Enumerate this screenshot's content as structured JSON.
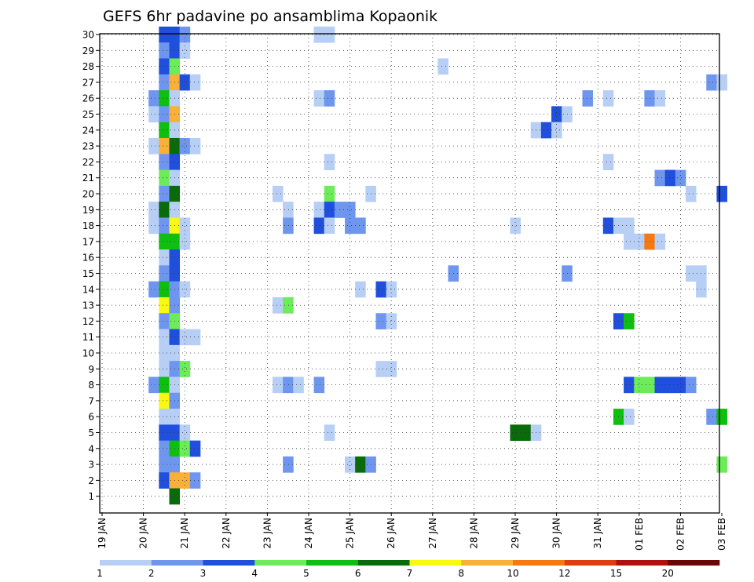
{
  "chart_data": {
    "type": "heatmap",
    "title": "GEFS 6hr padavine po ansamblima Kopaonik",
    "xlabel": "",
    "ylabel": "",
    "y_categories": [
      "1",
      "2",
      "3",
      "4",
      "5",
      "6",
      "7",
      "8",
      "9",
      "10",
      "11",
      "12",
      "13",
      "14",
      "15",
      "16",
      "17",
      "18",
      "19",
      "20",
      "21",
      "22",
      "23",
      "24",
      "25",
      "26",
      "27",
      "28",
      "29",
      "30"
    ],
    "x_ticks": [
      "19 JAN",
      "20 JAN",
      "21 JAN",
      "22 JAN",
      "23 JAN",
      "24 JAN",
      "25 JAN",
      "26 JAN",
      "27 JAN",
      "28 JAN",
      "29 JAN",
      "30 JAN",
      "31 JAN",
      "01 FEB",
      "02 FEB",
      "03 FEB"
    ],
    "x_range_days": [
      0,
      15
    ],
    "grid": true,
    "legend_placement": "bottom",
    "legend": {
      "thresholds": [
        "1",
        "2",
        "3",
        "4",
        "5",
        "6",
        "7",
        "8",
        "10",
        "12",
        "15",
        "20"
      ],
      "colors": [
        "#b8cff5",
        "#6f96ef",
        "#1f4fdc",
        "#6cec58",
        "#0fbf0f",
        "#0a6b0a",
        "#f8f810",
        "#f8b038",
        "#f87810",
        "#e03c10",
        "#b01010",
        "#6a0606"
      ]
    },
    "cells_format": "[ensemble member, time step index (6h steps from 19 JAN 00Z), color class 1-12]",
    "cells": [
      [
        30,
        6,
        3
      ],
      [
        30,
        7,
        3
      ],
      [
        30,
        8,
        2
      ],
      [
        30,
        21,
        1
      ],
      [
        30,
        22,
        1
      ],
      [
        29,
        6,
        2
      ],
      [
        29,
        7,
        3
      ],
      [
        29,
        8,
        1
      ],
      [
        28,
        6,
        3
      ],
      [
        28,
        7,
        4
      ],
      [
        28,
        33,
        1
      ],
      [
        27,
        6,
        2
      ],
      [
        27,
        7,
        8
      ],
      [
        27,
        8,
        3
      ],
      [
        27,
        9,
        1
      ],
      [
        27,
        59,
        2
      ],
      [
        27,
        60,
        1
      ],
      [
        26,
        5,
        2
      ],
      [
        26,
        6,
        5
      ],
      [
        26,
        7,
        1
      ],
      [
        26,
        21,
        1
      ],
      [
        26,
        22,
        2
      ],
      [
        26,
        47,
        2
      ],
      [
        26,
        49,
        1
      ],
      [
        26,
        53,
        2
      ],
      [
        26,
        54,
        1
      ],
      [
        25,
        5,
        1
      ],
      [
        25,
        6,
        2
      ],
      [
        25,
        7,
        8
      ],
      [
        25,
        44,
        3
      ],
      [
        25,
        45,
        1
      ],
      [
        24,
        6,
        5
      ],
      [
        24,
        7,
        1
      ],
      [
        24,
        42,
        1
      ],
      [
        24,
        43,
        3
      ],
      [
        24,
        44,
        1
      ],
      [
        23,
        5,
        1
      ],
      [
        23,
        6,
        8
      ],
      [
        23,
        7,
        6
      ],
      [
        23,
        8,
        2
      ],
      [
        23,
        9,
        1
      ],
      [
        22,
        6,
        2
      ],
      [
        22,
        7,
        3
      ],
      [
        22,
        22,
        1
      ],
      [
        22,
        49,
        1
      ],
      [
        21,
        6,
        4
      ],
      [
        21,
        7,
        1
      ],
      [
        21,
        54,
        2
      ],
      [
        21,
        55,
        3
      ],
      [
        21,
        56,
        2
      ],
      [
        20,
        6,
        2
      ],
      [
        20,
        7,
        6
      ],
      [
        20,
        17,
        1
      ],
      [
        20,
        22,
        4
      ],
      [
        20,
        26,
        1
      ],
      [
        20,
        57,
        1
      ],
      [
        20,
        60,
        3
      ],
      [
        19,
        5,
        1
      ],
      [
        19,
        6,
        6
      ],
      [
        19,
        7,
        1
      ],
      [
        19,
        18,
        1
      ],
      [
        19,
        21,
        1
      ],
      [
        19,
        22,
        3
      ],
      [
        19,
        23,
        2
      ],
      [
        19,
        24,
        2
      ],
      [
        18,
        5,
        1
      ],
      [
        18,
        6,
        2
      ],
      [
        18,
        7,
        7
      ],
      [
        18,
        8,
        1
      ],
      [
        18,
        18,
        2
      ],
      [
        18,
        21,
        3
      ],
      [
        18,
        22,
        1
      ],
      [
        18,
        24,
        2
      ],
      [
        18,
        25,
        2
      ],
      [
        18,
        40,
        1
      ],
      [
        18,
        49,
        3
      ],
      [
        18,
        50,
        1
      ],
      [
        18,
        51,
        1
      ],
      [
        17,
        6,
        5
      ],
      [
        17,
        7,
        5
      ],
      [
        17,
        8,
        1
      ],
      [
        17,
        51,
        1
      ],
      [
        17,
        52,
        1
      ],
      [
        17,
        53,
        9
      ],
      [
        17,
        54,
        1
      ],
      [
        16,
        6,
        1
      ],
      [
        16,
        7,
        3
      ],
      [
        15,
        6,
        2
      ],
      [
        15,
        7,
        3
      ],
      [
        15,
        34,
        2
      ],
      [
        15,
        45,
        2
      ],
      [
        15,
        57,
        1
      ],
      [
        15,
        58,
        1
      ],
      [
        14,
        5,
        2
      ],
      [
        14,
        6,
        5
      ],
      [
        14,
        7,
        2
      ],
      [
        14,
        8,
        1
      ],
      [
        14,
        25,
        1
      ],
      [
        14,
        27,
        3
      ],
      [
        14,
        28,
        1
      ],
      [
        14,
        58,
        1
      ],
      [
        13,
        6,
        7
      ],
      [
        13,
        7,
        2
      ],
      [
        13,
        17,
        1
      ],
      [
        13,
        18,
        4
      ],
      [
        12,
        6,
        2
      ],
      [
        12,
        7,
        4
      ],
      [
        12,
        27,
        2
      ],
      [
        12,
        28,
        1
      ],
      [
        12,
        50,
        3
      ],
      [
        12,
        51,
        5
      ],
      [
        11,
        6,
        1
      ],
      [
        11,
        7,
        3
      ],
      [
        11,
        8,
        1
      ],
      [
        11,
        9,
        1
      ],
      [
        10,
        6,
        1
      ],
      [
        10,
        7,
        1
      ],
      [
        9,
        6,
        1
      ],
      [
        9,
        7,
        2
      ],
      [
        9,
        8,
        4
      ],
      [
        9,
        27,
        1
      ],
      [
        9,
        28,
        1
      ],
      [
        8,
        5,
        2
      ],
      [
        8,
        6,
        5
      ],
      [
        8,
        7,
        1
      ],
      [
        8,
        17,
        1
      ],
      [
        8,
        18,
        2
      ],
      [
        8,
        19,
        1
      ],
      [
        8,
        21,
        2
      ],
      [
        8,
        51,
        3
      ],
      [
        8,
        52,
        4
      ],
      [
        8,
        53,
        4
      ],
      [
        8,
        54,
        3
      ],
      [
        8,
        55,
        3
      ],
      [
        8,
        56,
        3
      ],
      [
        8,
        57,
        2
      ],
      [
        7,
        6,
        7
      ],
      [
        7,
        7,
        2
      ],
      [
        6,
        6,
        1
      ],
      [
        6,
        7,
        1
      ],
      [
        6,
        50,
        5
      ],
      [
        6,
        51,
        1
      ],
      [
        6,
        59,
        2
      ],
      [
        6,
        60,
        5
      ],
      [
        5,
        6,
        3
      ],
      [
        5,
        7,
        3
      ],
      [
        5,
        8,
        1
      ],
      [
        5,
        22,
        1
      ],
      [
        5,
        40,
        6
      ],
      [
        5,
        41,
        6
      ],
      [
        5,
        42,
        1
      ],
      [
        4,
        6,
        2
      ],
      [
        4,
        7,
        5
      ],
      [
        4,
        8,
        4
      ],
      [
        4,
        9,
        3
      ],
      [
        3,
        6,
        2
      ],
      [
        3,
        7,
        2
      ],
      [
        3,
        18,
        2
      ],
      [
        3,
        24,
        1
      ],
      [
        3,
        25,
        6
      ],
      [
        3,
        26,
        2
      ],
      [
        3,
        60,
        4
      ],
      [
        2,
        6,
        3
      ],
      [
        2,
        7,
        8
      ],
      [
        2,
        8,
        8
      ],
      [
        2,
        9,
        2
      ],
      [
        1,
        7,
        6
      ]
    ]
  }
}
